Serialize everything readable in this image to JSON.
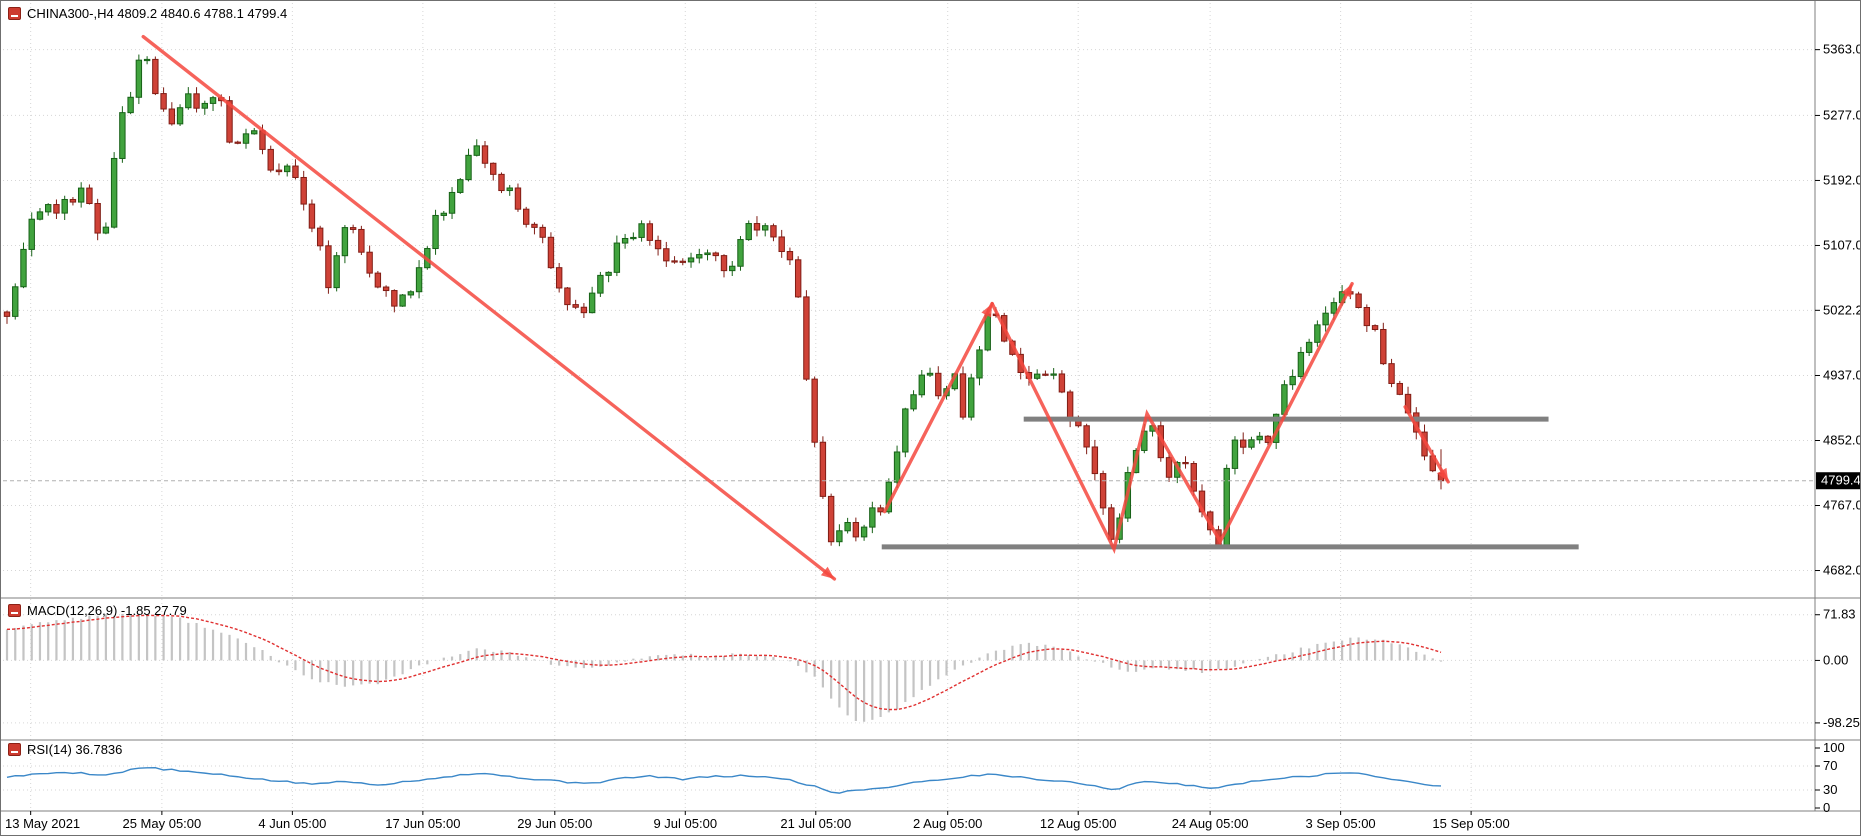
{
  "window": {
    "title": "CHINA300-,H4  4809.2 4840.6 4788.1 4799.4",
    "symbol": "CHINA300-",
    "timeframe": "H4"
  },
  "colors": {
    "background": "#ffffff",
    "grid": "#d6d6d6",
    "text": "#000000",
    "bull_fill": "#41a33e",
    "bull_stroke": "#176117",
    "bear_fill": "#cf4237",
    "bear_stroke": "#801d15",
    "arrow": "#f4483e",
    "sr_line": "#808080",
    "macd_hist": "#c4c4c4",
    "macd_signal": "#e03131",
    "rsi_line": "#3a87c8",
    "price_line": "#b0b0b0",
    "tag_bg": "#000000",
    "tag_fg": "#ffffff",
    "separator": "#7f7f7f",
    "icon": "#cd3b2f"
  },
  "chart_data": {
    "type": "candlestick",
    "title": "CHINA300-,H4",
    "symbol": "CHINA300-",
    "timeframe": "H4",
    "grid": "dotted",
    "current_bar": {
      "open": 4809.2,
      "high": 4840.6,
      "low": 4788.1,
      "close": 4799.4
    },
    "price_axis": {
      "tick_labels": [
        "5363.0",
        "5277.0",
        "5192.0",
        "5107.0",
        "5022.2",
        "4937.0",
        "4852.0",
        "4767.0",
        "4682.0"
      ],
      "ylim": [
        4650,
        5390
      ],
      "current_price": 4799.4,
      "current_price_label": "4799.4"
    },
    "time_axis": {
      "labels": [
        "13 May 2021",
        "25 May 05:00",
        "4 Jun 05:00",
        "17 Jun 05:00",
        "29 Jun 05:00",
        "9 Jul 05:00",
        "21 Jul 05:00",
        "2 Aug 05:00",
        "12 Aug 05:00",
        "24 Aug 05:00",
        "3 Sep 05:00",
        "15 Sep 05:00"
      ],
      "t": [
        0.0165,
        0.108,
        0.199,
        0.29,
        0.382,
        0.473,
        0.564,
        0.656,
        0.747,
        0.839,
        0.93,
        1.021
      ]
    },
    "candles": {
      "count": 175,
      "noise": 11,
      "wick": 9,
      "seed": 9,
      "path": [
        [
          0,
          5020
        ],
        [
          0.017,
          5150
        ],
        [
          0.037,
          5160
        ],
        [
          0.054,
          5185
        ],
        [
          0.066,
          5095
        ],
        [
          0.079,
          5270
        ],
        [
          0.095,
          5355
        ],
        [
          0.108,
          5290
        ],
        [
          0.116,
          5250
        ],
        [
          0.124,
          5300
        ],
        [
          0.137,
          5290
        ],
        [
          0.145,
          5315
        ],
        [
          0.158,
          5230
        ],
        [
          0.17,
          5270
        ],
        [
          0.183,
          5200
        ],
        [
          0.199,
          5220
        ],
        [
          0.212,
          5140
        ],
        [
          0.224,
          5060
        ],
        [
          0.237,
          5150
        ],
        [
          0.249,
          5080
        ],
        [
          0.257,
          5060
        ],
        [
          0.27,
          5030
        ],
        [
          0.278,
          5040
        ],
        [
          0.295,
          5120
        ],
        [
          0.31,
          5180
        ],
        [
          0.327,
          5230
        ],
        [
          0.353,
          5170
        ],
        [
          0.374,
          5110
        ],
        [
          0.391,
          5030
        ],
        [
          0.404,
          5020
        ],
        [
          0.424,
          5100
        ],
        [
          0.445,
          5130
        ],
        [
          0.465,
          5080
        ],
        [
          0.486,
          5110
        ],
        [
          0.502,
          5070
        ],
        [
          0.519,
          5140
        ],
        [
          0.536,
          5120
        ],
        [
          0.544,
          5090
        ],
        [
          0.552,
          5040
        ],
        [
          0.56,
          4890
        ],
        [
          0.568,
          4800
        ],
        [
          0.577,
          4695
        ],
        [
          0.585,
          4760
        ],
        [
          0.593,
          4730
        ],
        [
          0.601,
          4750
        ],
        [
          0.61,
          4770
        ],
        [
          0.627,
          4890
        ],
        [
          0.635,
          4920
        ],
        [
          0.643,
          4950
        ],
        [
          0.651,
          4900
        ],
        [
          0.66,
          4940
        ],
        [
          0.668,
          4880
        ],
        [
          0.676,
          4970
        ],
        [
          0.687,
          5025
        ],
        [
          0.697,
          4975
        ],
        [
          0.705,
          4950
        ],
        [
          0.714,
          4930
        ],
        [
          0.722,
          4930
        ],
        [
          0.73,
          4945
        ],
        [
          0.739,
          4890
        ],
        [
          0.747,
          4865
        ],
        [
          0.755,
          4830
        ],
        [
          0.763,
          4770
        ],
        [
          0.772,
          4705
        ],
        [
          0.78,
          4800
        ],
        [
          0.788,
          4845
        ],
        [
          0.795,
          4880
        ],
        [
          0.803,
          4850
        ],
        [
          0.811,
          4800
        ],
        [
          0.82,
          4825
        ],
        [
          0.828,
          4775
        ],
        [
          0.836,
          4745
        ],
        [
          0.845,
          4712
        ],
        [
          0.853,
          4860
        ],
        [
          0.861,
          4835
        ],
        [
          0.87,
          4870
        ],
        [
          0.878,
          4850
        ],
        [
          0.886,
          4885
        ],
        [
          0.895,
          4940
        ],
        [
          0.903,
          4965
        ],
        [
          0.911,
          4995
        ],
        [
          0.919,
          5015
        ],
        [
          0.928,
          5040
        ],
        [
          0.936,
          5058
        ],
        [
          0.944,
          5020
        ],
        [
          0.953,
          4995
        ],
        [
          0.961,
          4955
        ],
        [
          0.969,
          4915
        ],
        [
          0.978,
          4885
        ],
        [
          0.986,
          4845
        ],
        [
          0.994,
          4815
        ],
        [
          1,
          4799.4
        ]
      ]
    },
    "annotations": {
      "hlines": [
        {
          "price": 4880,
          "t1": 0.709,
          "t2": 1.075
        },
        {
          "price": 4713,
          "t1": 0.61,
          "t2": 1.096
        }
      ],
      "arrows": [
        {
          "points": [
            [
              0.095,
              5380
            ],
            [
              0.577,
              4671
            ]
          ],
          "head": true
        },
        {
          "points": [
            [
              0.612,
              4759
            ],
            [
              0.687,
              5031
            ]
          ],
          "head": true
        },
        {
          "points": [
            [
              0.687,
              5031
            ],
            [
              0.772,
              4710
            ],
            [
              0.795,
              4887
            ],
            [
              0.846,
              4720
            ],
            [
              0.938,
              5057
            ]
          ],
          "head": true
        },
        {
          "points": [
            [
              0.975,
              4896
            ],
            [
              1.005,
              4798
            ]
          ],
          "head": true
        }
      ]
    },
    "indicators": [
      {
        "name": "MACD",
        "label": "MACD(12,26,9) -1.85 27.79",
        "params": "12,26,9",
        "macd_value": -1.85,
        "signal_value": 27.79,
        "scale_ticks": [
          "71.83",
          "0.00",
          "-98.25"
        ],
        "ylim": [
          -122,
          95
        ],
        "main_path": [
          [
            0,
            50
          ],
          [
            0.03,
            62
          ],
          [
            0.06,
            70
          ],
          [
            0.09,
            74
          ],
          [
            0.12,
            66
          ],
          [
            0.15,
            45
          ],
          [
            0.18,
            12
          ],
          [
            0.21,
            -28
          ],
          [
            0.235,
            -42
          ],
          [
            0.26,
            -35
          ],
          [
            0.285,
            -12
          ],
          [
            0.31,
            8
          ],
          [
            0.33,
            18
          ],
          [
            0.355,
            10
          ],
          [
            0.38,
            -6
          ],
          [
            0.4,
            -14
          ],
          [
            0.42,
            -8
          ],
          [
            0.445,
            6
          ],
          [
            0.47,
            10
          ],
          [
            0.49,
            6
          ],
          [
            0.51,
            10
          ],
          [
            0.53,
            6
          ],
          [
            0.55,
            -6
          ],
          [
            0.565,
            -30
          ],
          [
            0.578,
            -70
          ],
          [
            0.59,
            -92
          ],
          [
            0.6,
            -98
          ],
          [
            0.61,
            -90
          ],
          [
            0.625,
            -70
          ],
          [
            0.64,
            -45
          ],
          [
            0.655,
            -22
          ],
          [
            0.67,
            -5
          ],
          [
            0.685,
            12
          ],
          [
            0.7,
            22
          ],
          [
            0.715,
            26
          ],
          [
            0.73,
            20
          ],
          [
            0.745,
            10
          ],
          [
            0.76,
            -2
          ],
          [
            0.775,
            -14
          ],
          [
            0.79,
            -18
          ],
          [
            0.805,
            -12
          ],
          [
            0.82,
            -14
          ],
          [
            0.835,
            -18
          ],
          [
            0.85,
            -14
          ],
          [
            0.865,
            -4
          ],
          [
            0.88,
            6
          ],
          [
            0.895,
            14
          ],
          [
            0.91,
            22
          ],
          [
            0.925,
            30
          ],
          [
            0.94,
            36
          ],
          [
            0.955,
            34
          ],
          [
            0.97,
            26
          ],
          [
            0.985,
            12
          ],
          [
            1,
            -1.85
          ]
        ]
      },
      {
        "name": "RSI",
        "label": "RSI(14) 36.7836",
        "period": 14,
        "value": 36.7836,
        "scale_ticks": [
          "100",
          "70",
          "30",
          "0"
        ],
        "levels": [
          70,
          30
        ],
        "path": [
          [
            0,
            52
          ],
          [
            0.04,
            60
          ],
          [
            0.07,
            55
          ],
          [
            0.095,
            68
          ],
          [
            0.12,
            62
          ],
          [
            0.15,
            55
          ],
          [
            0.18,
            47
          ],
          [
            0.21,
            40
          ],
          [
            0.235,
            44
          ],
          [
            0.26,
            39
          ],
          [
            0.285,
            46
          ],
          [
            0.315,
            55
          ],
          [
            0.33,
            58
          ],
          [
            0.36,
            50
          ],
          [
            0.39,
            43
          ],
          [
            0.41,
            42
          ],
          [
            0.43,
            50
          ],
          [
            0.45,
            53
          ],
          [
            0.47,
            48
          ],
          [
            0.49,
            52
          ],
          [
            0.52,
            54
          ],
          [
            0.545,
            47
          ],
          [
            0.565,
            35
          ],
          [
            0.578,
            24
          ],
          [
            0.59,
            30
          ],
          [
            0.61,
            33
          ],
          [
            0.63,
            42
          ],
          [
            0.66,
            50
          ],
          [
            0.687,
            57
          ],
          [
            0.71,
            50
          ],
          [
            0.74,
            44
          ],
          [
            0.772,
            31
          ],
          [
            0.795,
            45
          ],
          [
            0.815,
            40
          ],
          [
            0.845,
            33
          ],
          [
            0.87,
            46
          ],
          [
            0.9,
            52
          ],
          [
            0.938,
            60
          ],
          [
            0.96,
            50
          ],
          [
            0.98,
            42
          ],
          [
            1,
            36.7836
          ]
        ]
      }
    ]
  }
}
